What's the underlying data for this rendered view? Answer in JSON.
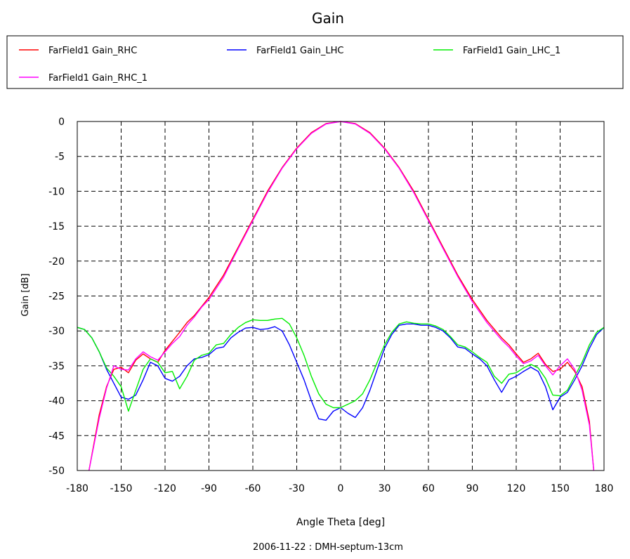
{
  "chart_data": {
    "type": "line",
    "title": "Gain",
    "xlabel": "Angle Theta [deg]",
    "ylabel": "Gain [dB]",
    "footer": "2006-11-22 : DMH-septum-13cm",
    "xlim": [
      -180,
      180
    ],
    "ylim": [
      -50,
      0
    ],
    "xticks": [
      -180,
      -150,
      -120,
      -90,
      -60,
      -30,
      0,
      30,
      60,
      90,
      120,
      150,
      180
    ],
    "yticks": [
      0,
      -5,
      -10,
      -15,
      -20,
      -25,
      -30,
      -35,
      -40,
      -45,
      -50
    ],
    "grid": true,
    "legend_position": "top",
    "series": [
      {
        "name": "FarField1 Gain_RHC",
        "color": "#ff0000",
        "x": [
          -172,
          -165,
          -160,
          -155,
          -150,
          -145,
          -140,
          -135,
          -130,
          -125,
          -120,
          -115,
          -110,
          -105,
          -100,
          -95,
          -90,
          -80,
          -70,
          -60,
          -50,
          -40,
          -30,
          -20,
          -10,
          0,
          10,
          20,
          30,
          40,
          50,
          60,
          70,
          80,
          90,
          100,
          110,
          115,
          120,
          125,
          130,
          135,
          140,
          145,
          150,
          155,
          160,
          165,
          170,
          173
        ],
        "y": [
          -50,
          -42,
          -38,
          -35.5,
          -35.2,
          -36,
          -34.2,
          -33.3,
          -34,
          -34.5,
          -32.8,
          -31.5,
          -30.2,
          -28.8,
          -27.8,
          -26.5,
          -25.2,
          -22,
          -18,
          -14,
          -10,
          -6.6,
          -3.8,
          -1.6,
          -0.3,
          0,
          -0.3,
          -1.6,
          -3.8,
          -6.6,
          -10,
          -14,
          -18,
          -22,
          -25.5,
          -28.5,
          -31,
          -32,
          -33.3,
          -34.5,
          -34,
          -33.2,
          -34.8,
          -35.8,
          -35.5,
          -34.5,
          -35.8,
          -38,
          -43,
          -50
        ]
      },
      {
        "name": "FarField1 Gain_LHC",
        "color": "#0000ff",
        "x": [
          -180,
          -175,
          -170,
          -165,
          -160,
          -155,
          -150,
          -145,
          -140,
          -135,
          -130,
          -125,
          -120,
          -115,
          -110,
          -105,
          -100,
          -95,
          -90,
          -85,
          -80,
          -75,
          -70,
          -65,
          -60,
          -55,
          -50,
          -45,
          -40,
          -35,
          -30,
          -25,
          -20,
          -15,
          -10,
          -5,
          0,
          5,
          10,
          15,
          20,
          25,
          30,
          35,
          40,
          45,
          50,
          55,
          60,
          65,
          70,
          75,
          80,
          85,
          90,
          95,
          100,
          105,
          110,
          115,
          120,
          125,
          130,
          135,
          140,
          145,
          150,
          155,
          160,
          165,
          170,
          175,
          180
        ],
        "y": [
          -29.5,
          -29.8,
          -31,
          -33,
          -35.5,
          -37.5,
          -39.5,
          -39.8,
          -39.2,
          -37,
          -34.5,
          -35,
          -36.8,
          -37.2,
          -36.5,
          -35,
          -34,
          -33.8,
          -33.4,
          -32.5,
          -32.3,
          -31,
          -30.2,
          -29.6,
          -29.5,
          -29.8,
          -29.7,
          -29.4,
          -30,
          -32,
          -34.5,
          -37,
          -40,
          -42.6,
          -42.8,
          -41.5,
          -41,
          -41.8,
          -42.4,
          -41,
          -38.5,
          -35.5,
          -32.5,
          -30.5,
          -29.2,
          -29,
          -29,
          -29.2,
          -29.2,
          -29.5,
          -30,
          -31,
          -32.3,
          -32.5,
          -33.3,
          -34,
          -35,
          -37,
          -38.8,
          -37,
          -36.5,
          -35.8,
          -35.2,
          -35.8,
          -38,
          -41.3,
          -39.5,
          -38.8,
          -37,
          -35,
          -32.5,
          -30.5,
          -29.5
        ]
      },
      {
        "name": "FarField1 Gain_LHC_1",
        "color": "#00ee00",
        "x": [
          -180,
          -175,
          -170,
          -165,
          -160,
          -155,
          -150,
          -145,
          -140,
          -135,
          -130,
          -125,
          -120,
          -115,
          -110,
          -105,
          -100,
          -95,
          -90,
          -85,
          -80,
          -75,
          -70,
          -65,
          -60,
          -55,
          -50,
          -45,
          -40,
          -35,
          -30,
          -25,
          -20,
          -15,
          -10,
          -5,
          0,
          5,
          10,
          15,
          20,
          25,
          30,
          35,
          40,
          45,
          50,
          55,
          60,
          65,
          70,
          75,
          80,
          85,
          90,
          95,
          100,
          105,
          110,
          115,
          120,
          125,
          130,
          135,
          140,
          145,
          150,
          155,
          160,
          165,
          170,
          175,
          180
        ],
        "y": [
          -29.5,
          -29.8,
          -31,
          -33,
          -35.3,
          -36.5,
          -38,
          -41.5,
          -38.5,
          -35.5,
          -34,
          -34.5,
          -36,
          -35.8,
          -38.3,
          -36.5,
          -34.2,
          -33.5,
          -33.2,
          -32,
          -31.8,
          -30.5,
          -29.5,
          -28.8,
          -28.4,
          -28.5,
          -28.5,
          -28.3,
          -28.2,
          -29,
          -31,
          -33.5,
          -36.5,
          -39,
          -40.5,
          -41,
          -41,
          -40.5,
          -40,
          -39,
          -37,
          -34.5,
          -32,
          -30.2,
          -29,
          -28.7,
          -28.9,
          -29,
          -29,
          -29.3,
          -29.8,
          -30.8,
          -32,
          -32.3,
          -33,
          -33.8,
          -34.5,
          -36.5,
          -37.5,
          -36.2,
          -36,
          -35.3,
          -34.8,
          -35.3,
          -36.8,
          -39.2,
          -39.3,
          -38.5,
          -36.5,
          -34.5,
          -32,
          -30.2,
          -29.5
        ]
      },
      {
        "name": "FarField1 Gain_RHC_1",
        "color": "#ff00ff",
        "x": [
          -172,
          -165,
          -160,
          -155,
          -150,
          -145,
          -140,
          -135,
          -130,
          -125,
          -120,
          -115,
          -110,
          -105,
          -100,
          -95,
          -90,
          -80,
          -70,
          -60,
          -50,
          -40,
          -30,
          -20,
          -10,
          0,
          10,
          20,
          30,
          40,
          50,
          60,
          70,
          80,
          90,
          100,
          110,
          115,
          120,
          125,
          130,
          135,
          140,
          145,
          150,
          155,
          160,
          165,
          170,
          173
        ],
        "y": [
          -50,
          -42.5,
          -38.2,
          -35,
          -35.5,
          -35.6,
          -34,
          -33,
          -33.7,
          -34.2,
          -33,
          -31.8,
          -30.8,
          -29.2,
          -28,
          -26.6,
          -25.5,
          -22.3,
          -18.2,
          -14.2,
          -10.2,
          -6.7,
          -3.9,
          -1.7,
          -0.35,
          0,
          -0.35,
          -1.7,
          -3.9,
          -6.7,
          -10.2,
          -14.2,
          -18.2,
          -22.2,
          -25.8,
          -28.8,
          -31.3,
          -32.3,
          -33.6,
          -34.7,
          -34.3,
          -33.5,
          -35,
          -36.3,
          -35,
          -34,
          -35.5,
          -38.5,
          -43.5,
          -50
        ]
      }
    ]
  }
}
